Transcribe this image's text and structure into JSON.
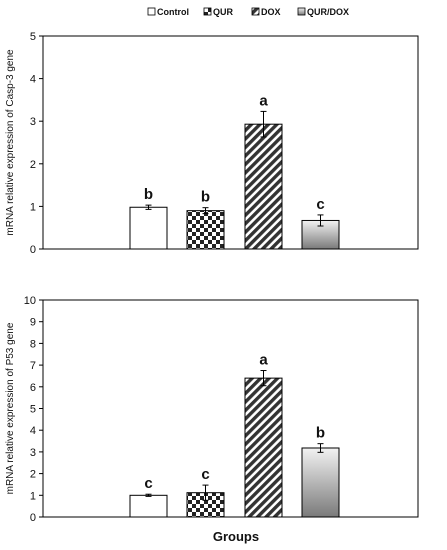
{
  "legend": [
    {
      "label": "Control",
      "pattern": "white"
    },
    {
      "label": "QUR",
      "pattern": "checker"
    },
    {
      "label": "DOX",
      "pattern": "hatch"
    },
    {
      "label": "QUR/DOX",
      "pattern": "gradient"
    }
  ],
  "xlabel": "Groups",
  "colors": {
    "bar_stroke": "#000000",
    "hatch": "#333333",
    "gradient_top": "#f2f2f2",
    "gradient_bottom": "#7a7a7a"
  },
  "chart_data": [
    {
      "type": "bar",
      "categories": [
        "Control",
        "QUR",
        "DOX",
        "QUR/DOX"
      ],
      "values": [
        0.98,
        0.9,
        2.93,
        0.67
      ],
      "errors": [
        0.05,
        0.07,
        0.3,
        0.13
      ],
      "letters": [
        "b",
        "b",
        "a",
        "c"
      ],
      "ylabel": "mRNA relative expression of Casp-3 gene",
      "ylim": [
        0,
        5
      ],
      "yticks": [
        "0",
        "1",
        "2",
        "3",
        "4",
        "5"
      ],
      "grid": false
    },
    {
      "type": "bar",
      "categories": [
        "Control",
        "QUR",
        "DOX",
        "QUR/DOX"
      ],
      "values": [
        1.0,
        1.12,
        6.4,
        3.18
      ],
      "errors": [
        0.05,
        0.35,
        0.35,
        0.2
      ],
      "letters": [
        "c",
        "c",
        "a",
        "b"
      ],
      "ylabel": "mRNA relative expression of P53 gene",
      "ylim": [
        0,
        10
      ],
      "yticks": [
        "0",
        "1",
        "2",
        "3",
        "4",
        "5",
        "6",
        "7",
        "8",
        "9",
        "10"
      ],
      "grid": false
    }
  ]
}
